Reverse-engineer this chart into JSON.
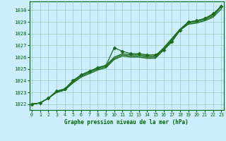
{
  "title": "Graphe pression niveau de la mer (hPa)",
  "hours": [
    0,
    1,
    2,
    3,
    4,
    5,
    6,
    7,
    8,
    9,
    10,
    11,
    12,
    13,
    14,
    15,
    16,
    17,
    18,
    19,
    20,
    21,
    22,
    23
  ],
  "series_marked": [
    1022.0,
    1022.1,
    1022.5,
    1023.1,
    1023.3,
    1024.0,
    1024.5,
    1024.8,
    1025.1,
    1025.3,
    1026.8,
    1026.5,
    1026.3,
    1026.3,
    1026.2,
    1026.2,
    1026.6,
    1027.3,
    1028.3,
    1029.0,
    1029.1,
    1029.3,
    1029.7,
    1030.3
  ],
  "series_smooth1": [
    1022.0,
    1022.1,
    1022.5,
    1023.1,
    1023.3,
    1024.0,
    1024.5,
    1024.8,
    1025.1,
    1025.3,
    1026.0,
    1026.3,
    1026.2,
    1026.2,
    1026.1,
    1026.1,
    1026.8,
    1027.6,
    1028.4,
    1029.0,
    1029.1,
    1029.3,
    1029.6,
    1030.4
  ],
  "series_smooth2": [
    1022.0,
    1022.1,
    1022.5,
    1023.0,
    1023.2,
    1023.9,
    1024.4,
    1024.7,
    1025.0,
    1025.2,
    1025.9,
    1026.2,
    1026.1,
    1026.1,
    1026.0,
    1026.0,
    1026.7,
    1027.5,
    1028.3,
    1028.9,
    1029.0,
    1029.2,
    1029.5,
    1030.3
  ],
  "series_smooth3": [
    1022.0,
    1022.1,
    1022.5,
    1023.0,
    1023.2,
    1023.8,
    1024.3,
    1024.6,
    1024.9,
    1025.1,
    1025.8,
    1026.1,
    1026.0,
    1026.0,
    1025.9,
    1025.9,
    1026.6,
    1027.4,
    1028.3,
    1028.8,
    1028.9,
    1029.1,
    1029.4,
    1030.1
  ],
  "ylim": [
    1021.5,
    1030.75
  ],
  "xlim": [
    -0.3,
    23.3
  ],
  "yticks": [
    1022,
    1023,
    1024,
    1025,
    1026,
    1027,
    1028,
    1029,
    1030
  ],
  "xticks": [
    0,
    1,
    2,
    3,
    4,
    5,
    6,
    7,
    8,
    9,
    10,
    11,
    12,
    13,
    14,
    15,
    16,
    17,
    18,
    19,
    20,
    21,
    22,
    23
  ],
  "line_color": "#1a6b1a",
  "bg_color": "#cceeff",
  "grid_color": "#99ccbb",
  "label_color": "#006600",
  "title_color": "#006600"
}
